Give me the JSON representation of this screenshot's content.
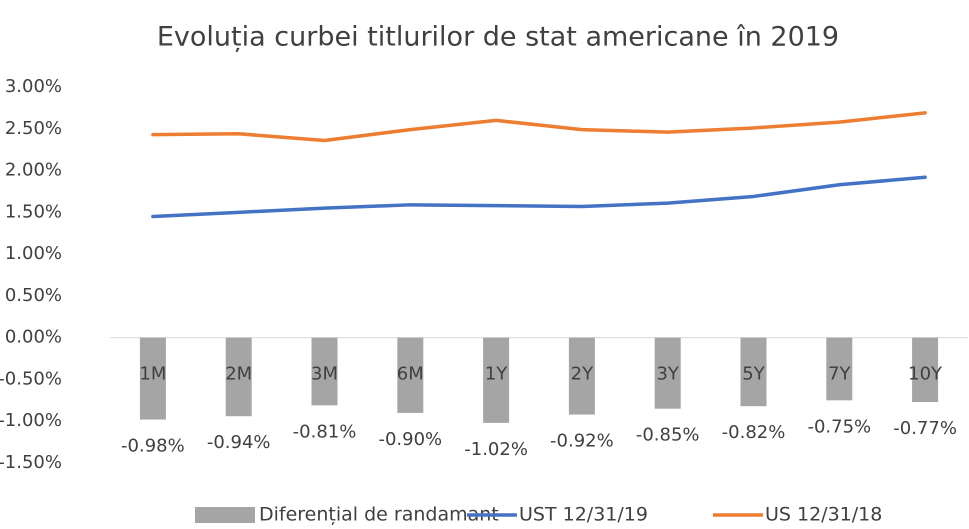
{
  "chart_data": {
    "type": "bar+line",
    "title": "Evoluția curbei titlurilor de stat americane în 2019",
    "categories": [
      "1M",
      "2M",
      "3M",
      "6M",
      "1Y",
      "2Y",
      "3Y",
      "5Y",
      "7Y",
      "10Y"
    ],
    "series": [
      {
        "name": "Diferențial de randamant",
        "type": "bar",
        "color": "#a5a5a5",
        "values": [
          -0.98,
          -0.94,
          -0.81,
          -0.9,
          -1.02,
          -0.92,
          -0.85,
          -0.82,
          -0.75,
          -0.77
        ],
        "value_labels": [
          "-0.98%",
          "-0.94%",
          "-0.81%",
          "-0.90%",
          "-1.02%",
          "-0.92%",
          "-0.85%",
          "-0.82%",
          "-0.75%",
          "-0.77%"
        ]
      },
      {
        "name": "UST 12/31/19",
        "type": "line",
        "color": "#4472c4",
        "values": [
          1.45,
          1.5,
          1.55,
          1.59,
          1.58,
          1.57,
          1.61,
          1.69,
          1.83,
          1.92
        ]
      },
      {
        "name": "US 12/31/18",
        "type": "line",
        "color": "#ed7d31",
        "values": [
          2.43,
          2.44,
          2.36,
          2.49,
          2.6,
          2.49,
          2.46,
          2.51,
          2.58,
          2.69
        ]
      }
    ],
    "ylim": [
      -1.5,
      3.0
    ],
    "yticks": [
      {
        "value": 3.0,
        "label": "3.00%"
      },
      {
        "value": 2.5,
        "label": "2.50%"
      },
      {
        "value": 2.0,
        "label": "2.00%"
      },
      {
        "value": 1.5,
        "label": "1.50%"
      },
      {
        "value": 1.0,
        "label": "1.00%"
      },
      {
        "value": 0.5,
        "label": "0.50%"
      },
      {
        "value": 0.0,
        "label": "0.00%"
      },
      {
        "value": -0.5,
        "label": "-0.50%"
      },
      {
        "value": -1.0,
        "label": "-1.00%"
      },
      {
        "value": -1.5,
        "label": "-1.50%"
      }
    ],
    "grid": false,
    "legend": "bottom"
  }
}
